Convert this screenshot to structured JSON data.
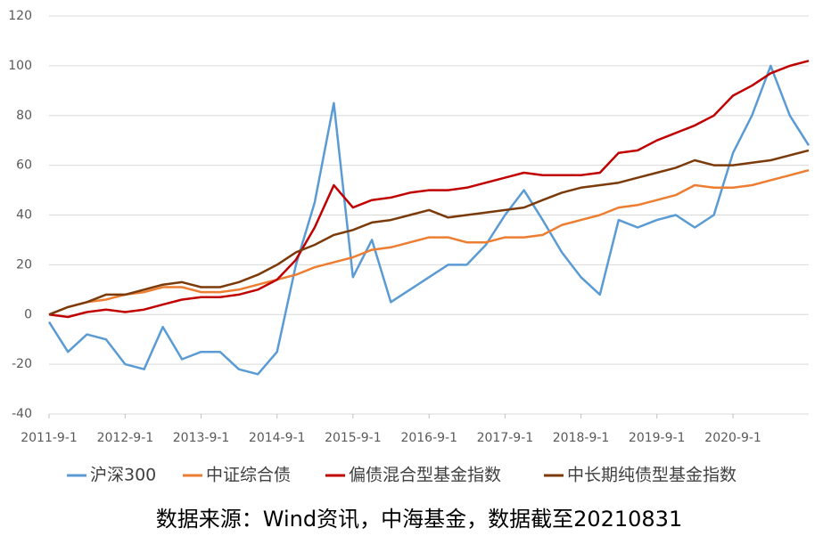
{
  "chart_data": {
    "type": "line",
    "x": [
      "2011-9-1",
      "2011-12-1",
      "2012-3-1",
      "2012-6-1",
      "2012-9-1",
      "2012-12-1",
      "2013-3-1",
      "2013-6-1",
      "2013-9-1",
      "2013-12-1",
      "2014-3-1",
      "2014-6-1",
      "2014-9-1",
      "2014-12-1",
      "2015-3-1",
      "2015-6-1",
      "2015-9-1",
      "2015-12-1",
      "2016-3-1",
      "2016-6-1",
      "2016-9-1",
      "2016-12-1",
      "2017-3-1",
      "2017-6-1",
      "2017-9-1",
      "2017-12-1",
      "2018-3-1",
      "2018-6-1",
      "2018-9-1",
      "2018-12-1",
      "2019-3-1",
      "2019-6-1",
      "2019-9-1",
      "2019-12-1",
      "2020-3-1",
      "2020-6-1",
      "2020-9-1",
      "2020-12-1",
      "2021-3-1",
      "2021-6-1",
      "2021-8-31"
    ],
    "series": [
      {
        "name": "沪深300",
        "color": "#5b9bd5",
        "values": [
          -3,
          -15,
          -8,
          -10,
          -20,
          -22,
          -5,
          -18,
          -15,
          -15,
          -22,
          -24,
          -15,
          20,
          45,
          85,
          15,
          30,
          5,
          10,
          15,
          20,
          20,
          28,
          40,
          50,
          38,
          25,
          15,
          8,
          38,
          35,
          38,
          40,
          35,
          40,
          65,
          80,
          100,
          80,
          68
        ]
      },
      {
        "name": "中证综合债",
        "color": "#ed7d31",
        "values": [
          0,
          3,
          5,
          6,
          8,
          9,
          11,
          11,
          9,
          9,
          10,
          12,
          14,
          16,
          19,
          21,
          23,
          26,
          27,
          29,
          31,
          31,
          29,
          29,
          31,
          31,
          32,
          36,
          38,
          40,
          43,
          44,
          46,
          48,
          52,
          51,
          51,
          52,
          54,
          56,
          58
        ]
      },
      {
        "name": "偏债混合型基金指数",
        "color": "#c00000",
        "values": [
          0,
          -1,
          1,
          2,
          1,
          2,
          4,
          6,
          7,
          7,
          8,
          10,
          14,
          22,
          35,
          52,
          43,
          46,
          47,
          49,
          50,
          50,
          51,
          53,
          55,
          57,
          56,
          56,
          56,
          57,
          65,
          66,
          70,
          73,
          76,
          80,
          88,
          92,
          97,
          100,
          102
        ]
      },
      {
        "name": "中长期纯债型基金指数",
        "color": "#7b3a0a",
        "values": [
          0,
          3,
          5,
          8,
          8,
          10,
          12,
          13,
          11,
          11,
          13,
          16,
          20,
          25,
          28,
          32,
          34,
          37,
          38,
          40,
          42,
          39,
          40,
          41,
          42,
          43,
          46,
          49,
          51,
          52,
          53,
          55,
          57,
          59,
          62,
          60,
          60,
          61,
          62,
          64,
          66
        ]
      }
    ],
    "xlim": [
      "2011-9-1",
      "2021-8-31"
    ],
    "xticks": [
      "2011-9-1",
      "2012-9-1",
      "2013-9-1",
      "2014-9-1",
      "2015-9-1",
      "2016-9-1",
      "2017-9-1",
      "2018-9-1",
      "2019-9-1",
      "2020-9-1"
    ],
    "ylim": [
      -40,
      120
    ],
    "yticks": [
      -40,
      -20,
      0,
      20,
      40,
      60,
      80,
      100,
      120
    ],
    "grid": true,
    "legend": "bottom",
    "footnote": "数据来源：Wind资讯，中海基金，数据截至20210831"
  }
}
